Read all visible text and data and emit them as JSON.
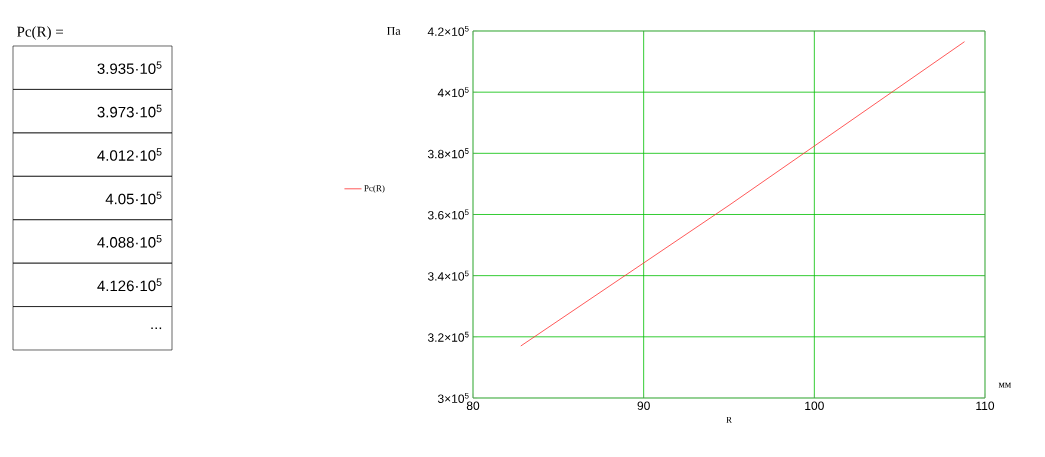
{
  "chart_data": {
    "type": "line",
    "x": [
      82.8,
      95,
      108.8
    ],
    "series": [
      {
        "name": "Pc(R)",
        "color": "#ff3030",
        "values": [
          317000,
          363000,
          416500
        ]
      }
    ],
    "xlabel": "R",
    "ylabel": "Па",
    "xlim": [
      80,
      110
    ],
    "xticks": [
      80,
      90,
      100,
      110
    ],
    "ylim": [
      300000,
      420000
    ],
    "yticks": [
      {
        "value": 300000,
        "label": "3×10$^{5}$"
      },
      {
        "value": 320000,
        "label": "3.2×10$^{5}$"
      },
      {
        "value": 340000,
        "label": "3.4×10$^{5}$"
      },
      {
        "value": 360000,
        "label": "3.6×10$^{5}$"
      },
      {
        "value": 380000,
        "label": "3.8×10$^{5}$"
      },
      {
        "value": 400000,
        "label": "4×10$^{5}$"
      },
      {
        "value": 420000,
        "label": "4.2×10$^{5}$"
      }
    ],
    "grid": true,
    "legend": "left",
    "marker": "none",
    "line_style": "solid",
    "annotations": [
      "мм",
      "Pc(R) =",
      "3.935·10$^{5}$",
      "3.973·10$^{5}$",
      "4.012·10$^{5}$",
      "4.05·10$^{5}$",
      "4.088·10$^{5}$",
      "4.126·10$^{5}$",
      "..."
    ]
  }
}
